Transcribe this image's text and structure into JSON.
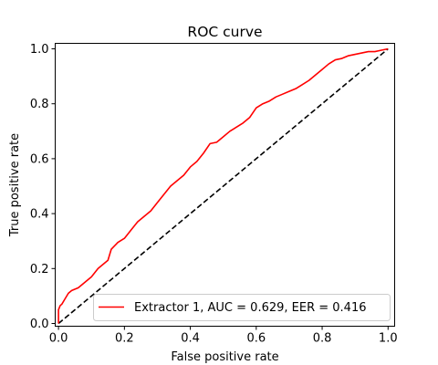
{
  "chart_data": {
    "type": "line",
    "title": "ROC curve",
    "xlabel": "False positive rate",
    "ylabel": "True positive rate",
    "xlim": [
      -0.01,
      1.02
    ],
    "ylim": [
      -0.01,
      1.02
    ],
    "x_ticks": [
      "0.0",
      "0.2",
      "0.4",
      "0.6",
      "0.8",
      "1.0"
    ],
    "y_ticks": [
      "0.0",
      "0.2",
      "0.4",
      "0.6",
      "0.8",
      "1.0"
    ],
    "x_tick_values": [
      0.0,
      0.2,
      0.4,
      0.6,
      0.8,
      1.0
    ],
    "y_tick_values": [
      0.0,
      0.2,
      0.4,
      0.6,
      0.8,
      1.0
    ],
    "grid": false,
    "legend_position": "lower-right",
    "series": [
      {
        "name": "Extractor 1, AUC = 0.629, EER = 0.416",
        "color": "#ff0000",
        "style": "solid",
        "x": [
          0.0,
          0.0,
          0.005,
          0.01,
          0.02,
          0.03,
          0.04,
          0.05,
          0.06,
          0.08,
          0.1,
          0.12,
          0.14,
          0.15,
          0.16,
          0.18,
          0.2,
          0.22,
          0.24,
          0.26,
          0.28,
          0.3,
          0.32,
          0.34,
          0.36,
          0.38,
          0.4,
          0.42,
          0.44,
          0.46,
          0.48,
          0.5,
          0.52,
          0.54,
          0.56,
          0.58,
          0.6,
          0.62,
          0.64,
          0.66,
          0.68,
          0.7,
          0.72,
          0.74,
          0.76,
          0.78,
          0.8,
          0.82,
          0.84,
          0.86,
          0.88,
          0.9,
          0.92,
          0.94,
          0.96,
          0.98,
          1.0
        ],
        "y": [
          0.0,
          0.05,
          0.065,
          0.07,
          0.09,
          0.11,
          0.12,
          0.125,
          0.13,
          0.15,
          0.17,
          0.2,
          0.22,
          0.23,
          0.27,
          0.295,
          0.31,
          0.34,
          0.37,
          0.39,
          0.41,
          0.44,
          0.47,
          0.5,
          0.52,
          0.54,
          0.57,
          0.59,
          0.62,
          0.655,
          0.66,
          0.68,
          0.7,
          0.715,
          0.73,
          0.75,
          0.785,
          0.8,
          0.81,
          0.825,
          0.835,
          0.845,
          0.855,
          0.87,
          0.885,
          0.905,
          0.925,
          0.945,
          0.96,
          0.965,
          0.975,
          0.98,
          0.985,
          0.99,
          0.99,
          0.995,
          1.0
        ]
      },
      {
        "name": "",
        "color": "#000000",
        "style": "dashed",
        "x": [
          0.0,
          1.0
        ],
        "y": [
          0.0,
          1.0
        ]
      }
    ]
  }
}
